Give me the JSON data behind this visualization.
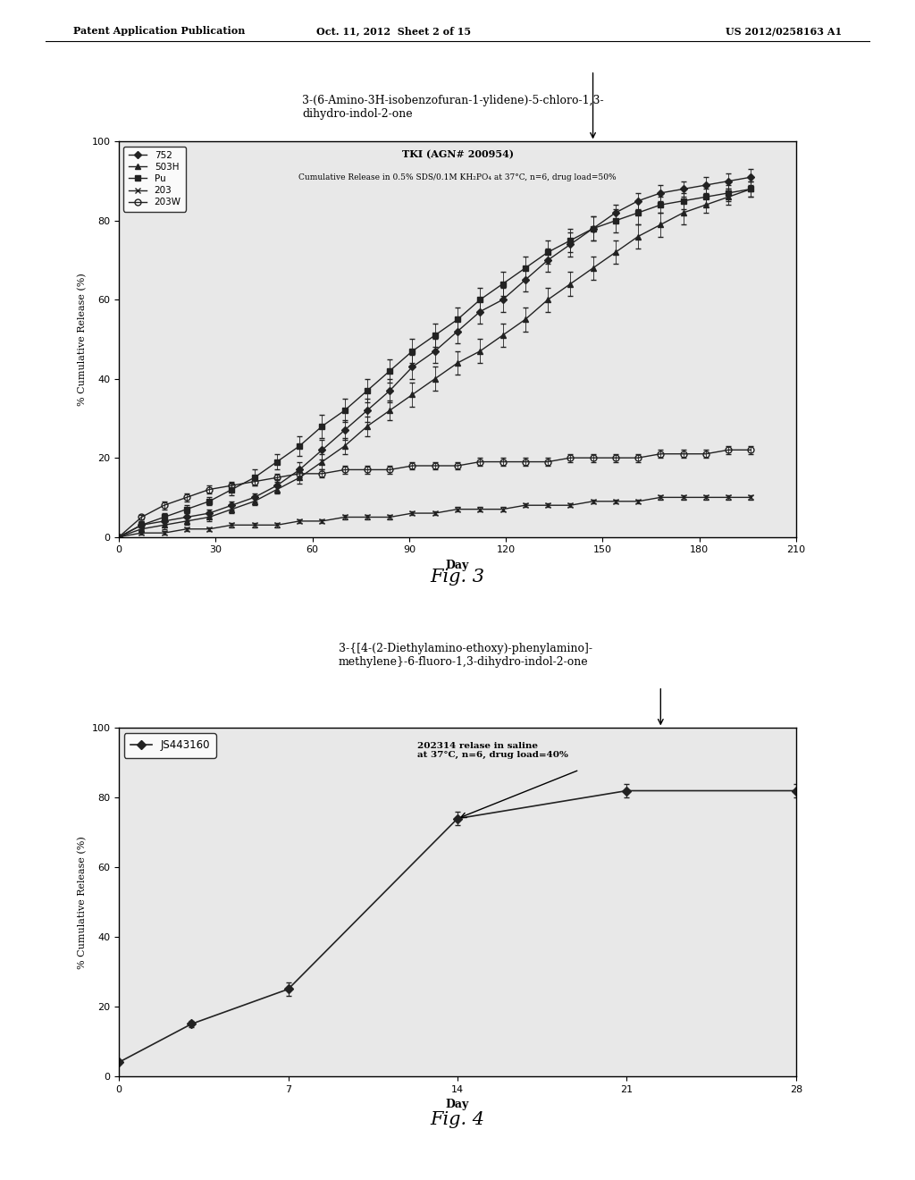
{
  "page_header_left": "Patent Application Publication",
  "page_header_mid": "Oct. 11, 2012  Sheet 2 of 15",
  "page_header_right": "US 2012/0258163 A1",
  "fig3": {
    "title_line1": "TKI (AGN# 200954)",
    "title_line2": "Cumulative Release in 0.5% SDS/0.1M KH₂PO₄ at 37°C, n=6, drug load=50%",
    "annotation_text": "3-(6-Amino-3H-isobenzofuran-1-ylidene)-5-chloro-1,3-\ndihydro-indol-2-one",
    "xlabel": "Day",
    "ylabel": "% Cumulative Release (%)",
    "xlim": [
      0,
      210
    ],
    "ylim": [
      0,
      100
    ],
    "xticks": [
      0,
      30,
      60,
      90,
      120,
      150,
      180,
      210
    ],
    "yticks": [
      0,
      20,
      40,
      60,
      80,
      100
    ],
    "fig_label": "Fig. 3",
    "series_order": [
      "752",
      "503H",
      "Pu",
      "203",
      "203W"
    ],
    "series": {
      "752": {
        "x": [
          0,
          7,
          14,
          21,
          28,
          35,
          42,
          49,
          56,
          63,
          70,
          77,
          84,
          91,
          98,
          105,
          112,
          119,
          126,
          133,
          140,
          147,
          154,
          161,
          168,
          175,
          182,
          189,
          196
        ],
        "y": [
          0,
          3,
          4,
          5,
          6,
          8,
          10,
          13,
          17,
          22,
          27,
          32,
          37,
          43,
          47,
          52,
          57,
          60,
          65,
          70,
          74,
          78,
          82,
          85,
          87,
          88,
          89,
          90,
          91
        ],
        "yerr": [
          0,
          1,
          1,
          1,
          1,
          1,
          1,
          1.5,
          2,
          2.5,
          2.5,
          3,
          3,
          3,
          3,
          3,
          3,
          3,
          3,
          3,
          3,
          3,
          2,
          2,
          2,
          2,
          2,
          2,
          2
        ],
        "marker": "D",
        "mfc": "#222222",
        "color": "#222222",
        "linestyle": "-"
      },
      "503H": {
        "x": [
          0,
          7,
          14,
          21,
          28,
          35,
          42,
          49,
          56,
          63,
          70,
          77,
          84,
          91,
          98,
          105,
          112,
          119,
          126,
          133,
          140,
          147,
          154,
          161,
          168,
          175,
          182,
          189,
          196
        ],
        "y": [
          0,
          2,
          3,
          4,
          5,
          7,
          9,
          12,
          15,
          19,
          23,
          28,
          32,
          36,
          40,
          44,
          47,
          51,
          55,
          60,
          64,
          68,
          72,
          76,
          79,
          82,
          84,
          86,
          88
        ],
        "yerr": [
          0,
          1,
          1,
          1,
          1,
          1,
          1,
          1,
          1.5,
          2,
          2,
          2.5,
          2.5,
          3,
          3,
          3,
          3,
          3,
          3,
          3,
          3,
          3,
          3,
          3,
          3,
          3,
          2,
          2,
          2
        ],
        "marker": "^",
        "mfc": "#222222",
        "color": "#222222",
        "linestyle": "-"
      },
      "Pu": {
        "x": [
          0,
          7,
          14,
          21,
          28,
          35,
          42,
          49,
          56,
          63,
          70,
          77,
          84,
          91,
          98,
          105,
          112,
          119,
          126,
          133,
          140,
          147,
          154,
          161,
          168,
          175,
          182,
          189,
          196
        ],
        "y": [
          0,
          3,
          5,
          7,
          9,
          12,
          15,
          19,
          23,
          28,
          32,
          37,
          42,
          47,
          51,
          55,
          60,
          64,
          68,
          72,
          75,
          78,
          80,
          82,
          84,
          85,
          86,
          87,
          88
        ],
        "yerr": [
          0,
          1,
          1,
          1,
          1,
          1.5,
          2,
          2,
          2.5,
          3,
          3,
          3,
          3,
          3,
          3,
          3,
          3,
          3,
          3,
          3,
          3,
          3,
          3,
          3,
          2,
          2,
          2,
          2,
          2
        ],
        "marker": "s",
        "mfc": "#222222",
        "color": "#222222",
        "linestyle": "-"
      },
      "203": {
        "x": [
          0,
          7,
          14,
          21,
          28,
          35,
          42,
          49,
          56,
          63,
          70,
          77,
          84,
          91,
          98,
          105,
          112,
          119,
          126,
          133,
          140,
          147,
          154,
          161,
          168,
          175,
          182,
          189,
          196
        ],
        "y": [
          0,
          1,
          1,
          2,
          2,
          3,
          3,
          3,
          4,
          4,
          5,
          5,
          5,
          6,
          6,
          7,
          7,
          7,
          8,
          8,
          8,
          9,
          9,
          9,
          10,
          10,
          10,
          10,
          10
        ],
        "yerr": [
          0,
          0.5,
          0.5,
          0.5,
          0.5,
          0.5,
          0.5,
          0.5,
          0.5,
          0.5,
          0.5,
          0.5,
          0.5,
          0.5,
          0.5,
          0.5,
          0.5,
          0.5,
          0.5,
          0.5,
          0.5,
          0.5,
          0.5,
          0.5,
          0.5,
          0.5,
          0.5,
          0.5,
          0.5
        ],
        "marker": "x",
        "mfc": "#222222",
        "color": "#222222",
        "linestyle": "-"
      },
      "203W": {
        "x": [
          0,
          7,
          14,
          21,
          28,
          35,
          42,
          49,
          56,
          63,
          70,
          77,
          84,
          91,
          98,
          105,
          112,
          119,
          126,
          133,
          140,
          147,
          154,
          161,
          168,
          175,
          182,
          189,
          196
        ],
        "y": [
          0,
          5,
          8,
          10,
          12,
          13,
          14,
          15,
          16,
          16,
          17,
          17,
          17,
          18,
          18,
          18,
          19,
          19,
          19,
          19,
          20,
          20,
          20,
          20,
          21,
          21,
          21,
          22,
          22
        ],
        "yerr": [
          0,
          0.5,
          1,
          1,
          1,
          1,
          1,
          1,
          1,
          1,
          1,
          1,
          1,
          1,
          1,
          1,
          1,
          1,
          1,
          1,
          1,
          1,
          1,
          1,
          1,
          1,
          1,
          1,
          1
        ],
        "marker": "o",
        "mfc": "none",
        "color": "#222222",
        "linestyle": "-"
      }
    }
  },
  "fig4": {
    "title_line1": "202314 relase in saline",
    "title_line2": "at 37°C, n=6, drug load=40%",
    "annotation_text": "3-{[4-(2-Diethylamino-ethoxy)-phenylamino]-\nmethylene}-6-fluoro-1,3-dihydro-indol-2-one",
    "xlabel": "Day",
    "ylabel": "% Cumulative Release (%)",
    "xlim": [
      0,
      28
    ],
    "ylim": [
      0,
      100
    ],
    "xticks": [
      0,
      7,
      14,
      21,
      28
    ],
    "yticks": [
      0,
      20,
      40,
      60,
      80,
      100
    ],
    "fig_label": "Fig. 4",
    "legend_label": "JS443160",
    "series": {
      "JS443160": {
        "x": [
          0,
          3,
          7,
          14,
          21,
          28
        ],
        "y": [
          4,
          15,
          25,
          74,
          82,
          82
        ],
        "yerr": [
          0.5,
          1,
          2,
          2,
          2,
          2
        ],
        "marker": "D",
        "mfc": "#222222",
        "color": "#222222",
        "linestyle": "-"
      }
    }
  },
  "bg_color": "#ffffff",
  "plot_bg": "#e8e8e8",
  "text_color": "#000000"
}
